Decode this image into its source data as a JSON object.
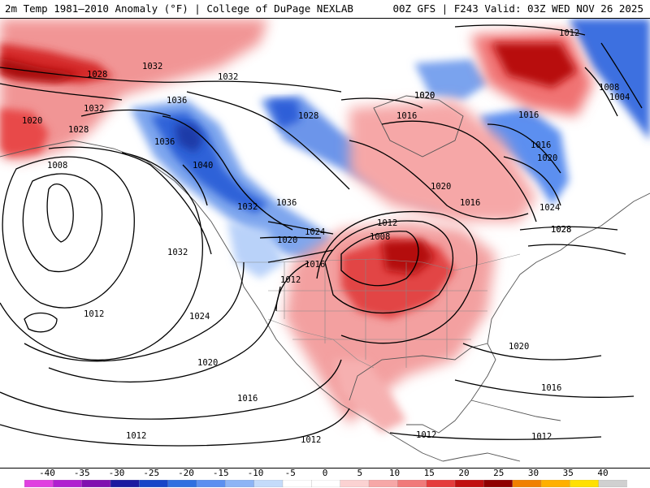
{
  "header": {
    "title_left": "2m Temp 1981–2010 Anomaly (°F) | College of DuPage NEXLAB",
    "title_right": "00Z GFS | F243 Valid: 03Z WED NOV 26 2025"
  },
  "colorbar": {
    "labels": [
      "-40",
      "-35",
      "-30",
      "-25",
      "-20",
      "-15",
      "-10",
      "-5",
      "0",
      "5",
      "10",
      "15",
      "20",
      "25",
      "30",
      "35",
      "40"
    ],
    "colors": [
      "#e040e0",
      "#b020d0",
      "#8010b0",
      "#1a1aa0",
      "#1545c8",
      "#2f6fe0",
      "#5b8ff0",
      "#8db4f5",
      "#c4dbfa",
      "#ffffff",
      "#ffffff",
      "#fbd2d2",
      "#f6a7a7",
      "#f07a7a",
      "#e43c3c",
      "#c01010",
      "#8e0000",
      "#f08000",
      "#ffb000",
      "#ffe000",
      "#d0d0d0"
    ]
  },
  "isobars": [
    {
      "label": "1032"
    },
    {
      "label": "1028"
    },
    {
      "label": "1032"
    },
    {
      "label": "1036"
    },
    {
      "label": "1032"
    },
    {
      "label": "1028"
    },
    {
      "label": "1020"
    },
    {
      "label": "1028"
    },
    {
      "label": "1036"
    },
    {
      "label": "1040"
    },
    {
      "label": "1008"
    },
    {
      "label": "1036"
    },
    {
      "label": "1032"
    },
    {
      "label": "1024"
    },
    {
      "label": "1020"
    },
    {
      "label": "1016"
    },
    {
      "label": "1012"
    },
    {
      "label": "1008"
    },
    {
      "label": "1012"
    },
    {
      "label": "1032"
    },
    {
      "label": "1012"
    },
    {
      "label": "1024"
    },
    {
      "label": "1020"
    },
    {
      "label": "1016"
    },
    {
      "label": "1012"
    },
    {
      "label": "1012"
    },
    {
      "label": "1012"
    },
    {
      "label": "1012"
    },
    {
      "label": "1016"
    },
    {
      "label": "1020"
    },
    {
      "label": "1012"
    },
    {
      "label": "1008"
    },
    {
      "label": "1004"
    },
    {
      "label": "1016"
    },
    {
      "label": "1016"
    },
    {
      "label": "1020"
    },
    {
      "label": "1020"
    },
    {
      "label": "1024"
    },
    {
      "label": "1028"
    },
    {
      "label": "1020"
    },
    {
      "label": "1016"
    },
    {
      "label": "1016"
    },
    {
      "label": "1020"
    },
    {
      "label": "1028"
    }
  ]
}
